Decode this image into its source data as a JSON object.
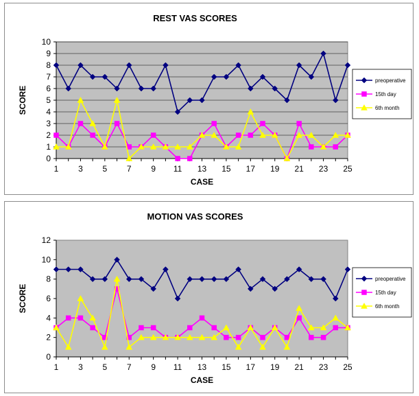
{
  "chart_data": [
    {
      "type": "line",
      "title": "REST VAS SCORES",
      "xlabel": "CASE",
      "ylabel": "SCORE",
      "ylim": [
        0,
        10
      ],
      "yticks": [
        0,
        1,
        2,
        3,
        4,
        5,
        6,
        7,
        8,
        9,
        10
      ],
      "x": [
        1,
        2,
        3,
        4,
        5,
        6,
        7,
        8,
        9,
        10,
        11,
        12,
        13,
        14,
        15,
        16,
        17,
        18,
        19,
        20,
        21,
        22,
        23,
        24,
        25
      ],
      "xticks": [
        1,
        3,
        5,
        7,
        9,
        11,
        13,
        15,
        17,
        19,
        21,
        23,
        25
      ],
      "grid": true,
      "legend_position": "right",
      "plot_background": "#c0c0c0",
      "series": [
        {
          "name": "preoperative",
          "color": "#000080",
          "marker": "diamond",
          "values": [
            8,
            6,
            8,
            7,
            7,
            6,
            8,
            6,
            6,
            8,
            4,
            5,
            5,
            7,
            7,
            8,
            6,
            7,
            6,
            5,
            8,
            7,
            9,
            5,
            8
          ]
        },
        {
          "name": "15th day",
          "color": "#ff00ff",
          "marker": "square",
          "values": [
            2,
            1,
            3,
            2,
            1,
            3,
            1,
            1,
            2,
            1,
            0,
            0,
            2,
            3,
            1,
            2,
            2,
            3,
            2,
            0,
            3,
            1,
            1,
            1,
            2
          ]
        },
        {
          "name": "6th month",
          "color": "#ffff00",
          "marker": "triangle",
          "values": [
            1,
            1,
            5,
            3,
            1,
            5,
            0,
            1,
            1,
            1,
            1,
            1,
            2,
            2,
            1,
            1,
            4,
            2,
            2,
            0,
            2,
            2,
            1,
            2,
            2
          ]
        }
      ]
    },
    {
      "type": "line",
      "title": "MOTION VAS SCORES",
      "xlabel": "CASE",
      "ylabel": "SCORE",
      "ylim": [
        0,
        12
      ],
      "yticks": [
        0,
        2,
        4,
        6,
        8,
        10,
        12
      ],
      "x": [
        1,
        2,
        3,
        4,
        5,
        6,
        7,
        8,
        9,
        10,
        11,
        12,
        13,
        14,
        15,
        16,
        17,
        18,
        19,
        20,
        21,
        22,
        23,
        24,
        25
      ],
      "xticks": [
        1,
        3,
        5,
        7,
        9,
        11,
        13,
        15,
        17,
        19,
        21,
        23,
        25
      ],
      "grid": false,
      "legend_position": "right",
      "plot_background": "#c0c0c0",
      "series": [
        {
          "name": "preoperative",
          "color": "#000080",
          "marker": "diamond",
          "values": [
            9,
            9,
            9,
            8,
            8,
            10,
            8,
            8,
            7,
            9,
            6,
            8,
            8,
            8,
            8,
            9,
            7,
            8,
            7,
            8,
            9,
            8,
            8,
            6,
            9
          ]
        },
        {
          "name": "15th day",
          "color": "#ff00ff",
          "marker": "square",
          "values": [
            3,
            4,
            4,
            3,
            2,
            7,
            2,
            3,
            3,
            2,
            2,
            3,
            4,
            3,
            2,
            2,
            3,
            2,
            3,
            2,
            4,
            2,
            2,
            3,
            3
          ]
        },
        {
          "name": "6th month",
          "color": "#ffff00",
          "marker": "triangle",
          "values": [
            3,
            1,
            6,
            4,
            1,
            8,
            1,
            2,
            2,
            2,
            2,
            2,
            2,
            2,
            3,
            1,
            3,
            1,
            3,
            1,
            5,
            3,
            3,
            4,
            3
          ]
        }
      ]
    }
  ]
}
